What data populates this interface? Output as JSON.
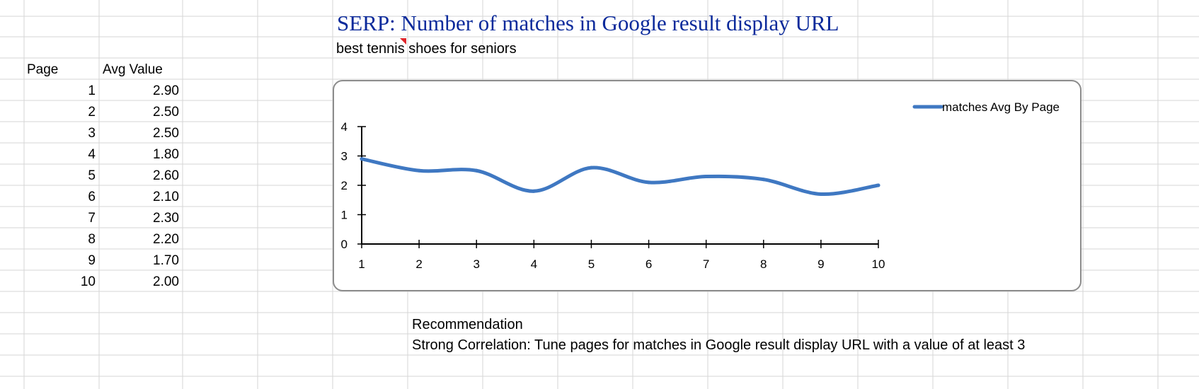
{
  "sheet": {
    "title": "SERP: Number of matches in Google result display URL",
    "keyword": "best tennis shoes for seniors",
    "table": {
      "headers": [
        "Page",
        "Avg Value"
      ],
      "rows": [
        [
          "1",
          "2.90"
        ],
        [
          "2",
          "2.50"
        ],
        [
          "3",
          "2.50"
        ],
        [
          "4",
          "1.80"
        ],
        [
          "5",
          "2.60"
        ],
        [
          "6",
          "2.10"
        ],
        [
          "7",
          "2.30"
        ],
        [
          "8",
          "2.20"
        ],
        [
          "9",
          "1.70"
        ],
        [
          "10",
          "2.00"
        ]
      ]
    },
    "recommendation": {
      "heading": "Recommendation",
      "text": "Strong Correlation: Tune pages for matches in Google result display URL with a value of at least 3"
    }
  },
  "colors": {
    "series": "#3f78c2",
    "title": "#0b2a9b",
    "comment": "#e0262b"
  },
  "chart_data": {
    "type": "line",
    "title": "",
    "xlabel": "",
    "ylabel": "",
    "x": [
      1,
      2,
      3,
      4,
      5,
      6,
      7,
      8,
      9,
      10
    ],
    "series": [
      {
        "name": "matches Avg By Page",
        "values": [
          2.9,
          2.5,
          2.5,
          1.8,
          2.6,
          2.1,
          2.3,
          2.2,
          1.7,
          2.0
        ]
      }
    ],
    "xlim": [
      1,
      10
    ],
    "ylim": [
      0,
      4
    ],
    "yticks": [
      0,
      1,
      2,
      3,
      4
    ],
    "xticks": [
      1,
      2,
      3,
      4,
      5,
      6,
      7,
      8,
      9,
      10
    ],
    "smooth": true,
    "grid": false,
    "legend": "top-right"
  }
}
